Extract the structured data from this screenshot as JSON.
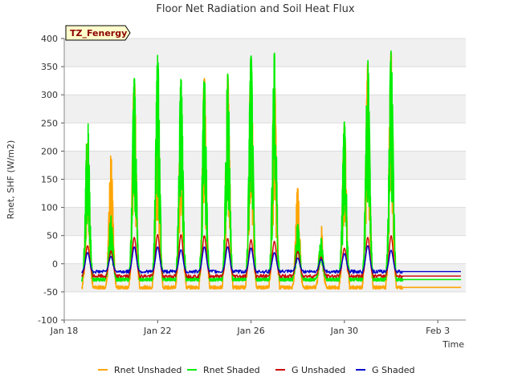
{
  "chart_data": {
    "type": "line",
    "title": "Floor Net Radiation and Soil Heat Flux",
    "xlabel": "Time",
    "ylabel": "Rnet, SHF (W/m2)",
    "site_tag": "TZ_Fenergy",
    "xlim": [
      0,
      17.2
    ],
    "ylim": [
      -100,
      400
    ],
    "yticks": [
      -100,
      -50,
      0,
      50,
      100,
      150,
      200,
      250,
      300,
      350,
      400
    ],
    "xticks": [
      {
        "day": 0,
        "label": "Jan 18"
      },
      {
        "day": 4,
        "label": "Jan 22"
      },
      {
        "day": 8,
        "label": "Jan 26"
      },
      {
        "day": 12,
        "label": "Jan 30"
      },
      {
        "day": 16,
        "label": "Feb 3"
      }
    ],
    "x_start_day": 0.75,
    "x_end_day": 17.0,
    "series": [
      {
        "name": "Rnet Unshaded",
        "color": "#FFA500",
        "night": -42,
        "peaks": [
          215,
          193,
          332,
          300,
          282,
          330,
          336,
          368,
          335,
          135,
          70,
          248,
          355,
          375
        ],
        "unit_width": 0.055
      },
      {
        "name": "Rnet Shaded",
        "color": "#00EE00",
        "night": -28,
        "peaks": [
          258,
          85,
          330,
          370,
          330,
          332,
          337,
          370,
          375,
          70,
          45,
          252,
          362,
          378
        ],
        "unit_width": 0.045
      },
      {
        "name": "G Unshaded",
        "color": "#CC0000",
        "night": -22,
        "peaks": [
          32,
          23,
          47,
          52,
          52,
          50,
          45,
          43,
          40,
          22,
          12,
          28,
          47,
          50
        ],
        "unit_width": 0.12
      },
      {
        "name": "G Shaded",
        "color": "#0000CC",
        "night": -14,
        "peaks": [
          20,
          13,
          30,
          30,
          25,
          30,
          30,
          28,
          20,
          10,
          8,
          18,
          32,
          24
        ],
        "unit_width": 0.15
      }
    ],
    "legend_position": "bottom",
    "grid": true
  }
}
